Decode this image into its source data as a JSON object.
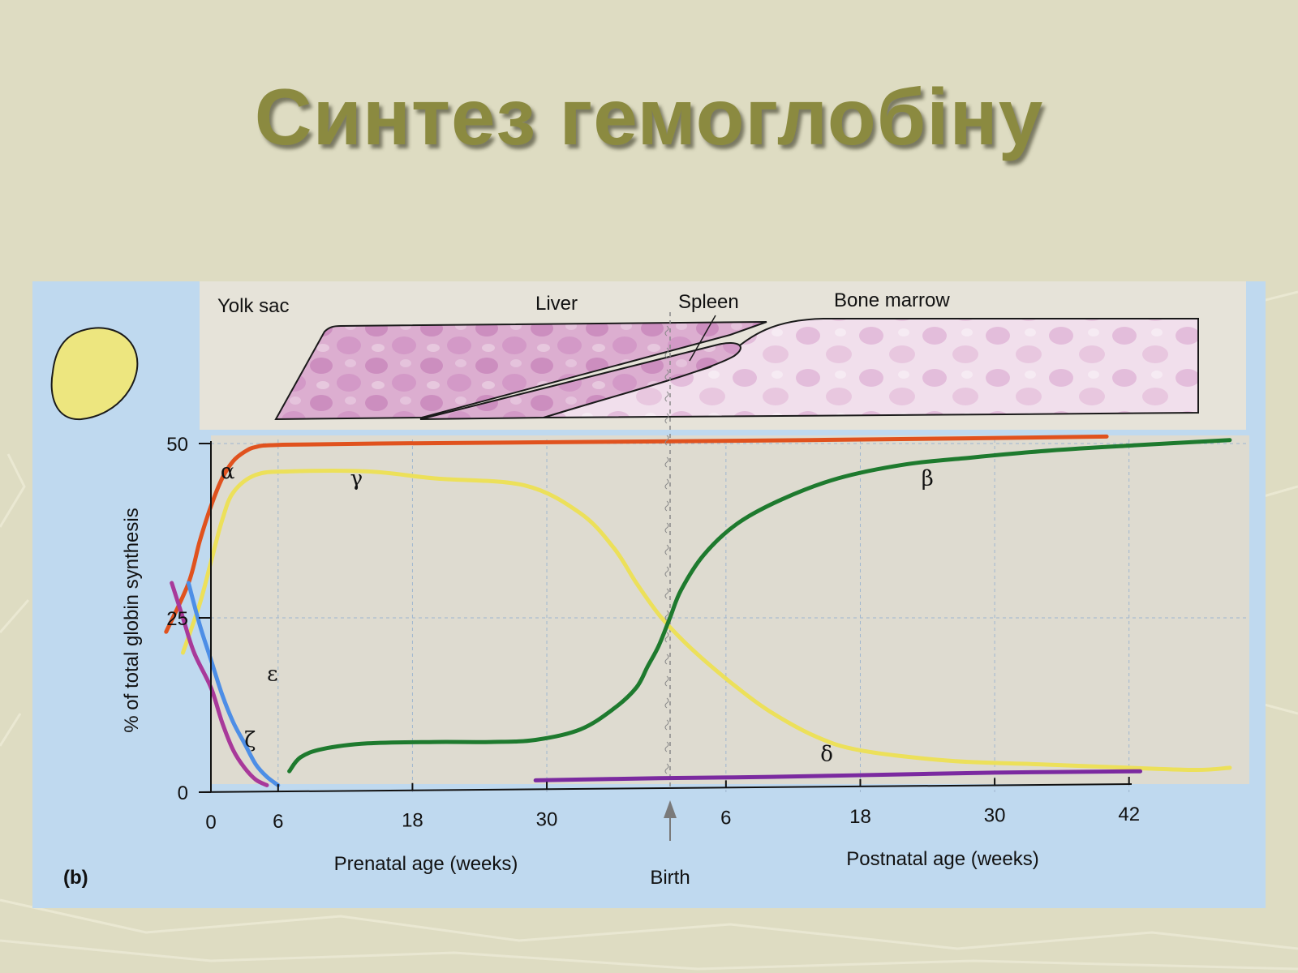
{
  "slide": {
    "title": "Синтез гемоглобіну"
  },
  "figure": {
    "panel_label": "(b)",
    "organs": [
      "Yolk sac",
      "Liver",
      "Spleen",
      "Bone marrow"
    ]
  },
  "chart_data": {
    "type": "line",
    "ylabel": "% of total globin synthesis",
    "xlabel_prenatal": "Prenatal age (weeks)",
    "xlabel_postnatal": "Postnatal age (weeks)",
    "ylim": [
      0,
      50
    ],
    "yticks": [
      "0",
      "25",
      "50"
    ],
    "xticks_prenatal": [
      "0",
      "6",
      "18",
      "30"
    ],
    "xticks_postnatal": [
      "6",
      "18",
      "30",
      "42"
    ],
    "birth_label": "Birth",
    "grid": true,
    "colors": {
      "alpha": "#e0521e",
      "gamma": "#ece05a",
      "beta": "#1e7a2e",
      "epsilon": "#4d8ee6",
      "zeta": "#a8399a",
      "delta": "#7b2aa0"
    },
    "series": [
      {
        "name": "α",
        "key": "alpha",
        "points": [
          [
            -4,
            23
          ],
          [
            -2,
            30
          ],
          [
            -1,
            36
          ],
          [
            0,
            41
          ],
          [
            1,
            45
          ],
          [
            2,
            47.5
          ],
          [
            3,
            48.8
          ],
          [
            4,
            49.5
          ],
          [
            6,
            49.8
          ],
          [
            15,
            50
          ],
          [
            40,
            50.3
          ],
          [
            60,
            50.6
          ],
          [
            80,
            51
          ]
        ]
      },
      {
        "name": "γ",
        "key": "gamma",
        "points": [
          [
            -2.5,
            20
          ],
          [
            -1,
            27
          ],
          [
            0,
            33
          ],
          [
            1,
            39
          ],
          [
            2,
            43
          ],
          [
            4,
            45.5
          ],
          [
            7,
            46
          ],
          [
            14,
            46
          ],
          [
            20,
            45
          ],
          [
            28,
            44
          ],
          [
            33,
            40
          ],
          [
            36,
            35
          ],
          [
            38,
            30
          ],
          [
            40,
            25.5
          ],
          [
            42,
            22
          ],
          [
            44,
            19
          ],
          [
            47,
            15
          ],
          [
            50,
            11.5
          ],
          [
            54,
            8
          ],
          [
            58,
            6
          ],
          [
            66,
            4.5
          ],
          [
            74,
            4
          ],
          [
            82,
            3.5
          ],
          [
            88,
            3.2
          ],
          [
            91,
            3.5
          ]
        ]
      },
      {
        "name": "β",
        "key": "beta",
        "points": [
          [
            7,
            3
          ],
          [
            8,
            5
          ],
          [
            10,
            6.2
          ],
          [
            14,
            7
          ],
          [
            20,
            7.2
          ],
          [
            25,
            7.2
          ],
          [
            29,
            7.5
          ],
          [
            33,
            9
          ],
          [
            36,
            12
          ],
          [
            38,
            15
          ],
          [
            39,
            18
          ],
          [
            40,
            21
          ],
          [
            41,
            25
          ],
          [
            42,
            29
          ],
          [
            44,
            34
          ],
          [
            47,
            38.5
          ],
          [
            51,
            42
          ],
          [
            56,
            45
          ],
          [
            62,
            47
          ],
          [
            68,
            48
          ],
          [
            75,
            49
          ],
          [
            82,
            49.7
          ],
          [
            91,
            50.5
          ]
        ]
      },
      {
        "name": "ε",
        "key": "epsilon",
        "points": [
          [
            -2,
            30
          ],
          [
            -1,
            24
          ],
          [
            0,
            19
          ],
          [
            1,
            14
          ],
          [
            2,
            10
          ],
          [
            3,
            7
          ],
          [
            4,
            4
          ],
          [
            5,
            2.2
          ],
          [
            6,
            1
          ]
        ]
      },
      {
        "name": "ζ",
        "key": "zeta",
        "points": [
          [
            -3.5,
            30
          ],
          [
            -2.5,
            25
          ],
          [
            -1.5,
            20
          ],
          [
            0,
            15
          ],
          [
            1,
            10
          ],
          [
            2,
            6
          ],
          [
            3,
            3.5
          ],
          [
            4,
            1.8
          ],
          [
            5,
            1
          ]
        ]
      },
      {
        "name": "δ",
        "key": "delta",
        "points": [
          [
            29,
            1.7
          ],
          [
            40,
            2
          ],
          [
            50,
            2.2
          ],
          [
            60,
            2.5
          ],
          [
            70,
            2.8
          ],
          [
            83,
            3
          ]
        ]
      }
    ]
  }
}
